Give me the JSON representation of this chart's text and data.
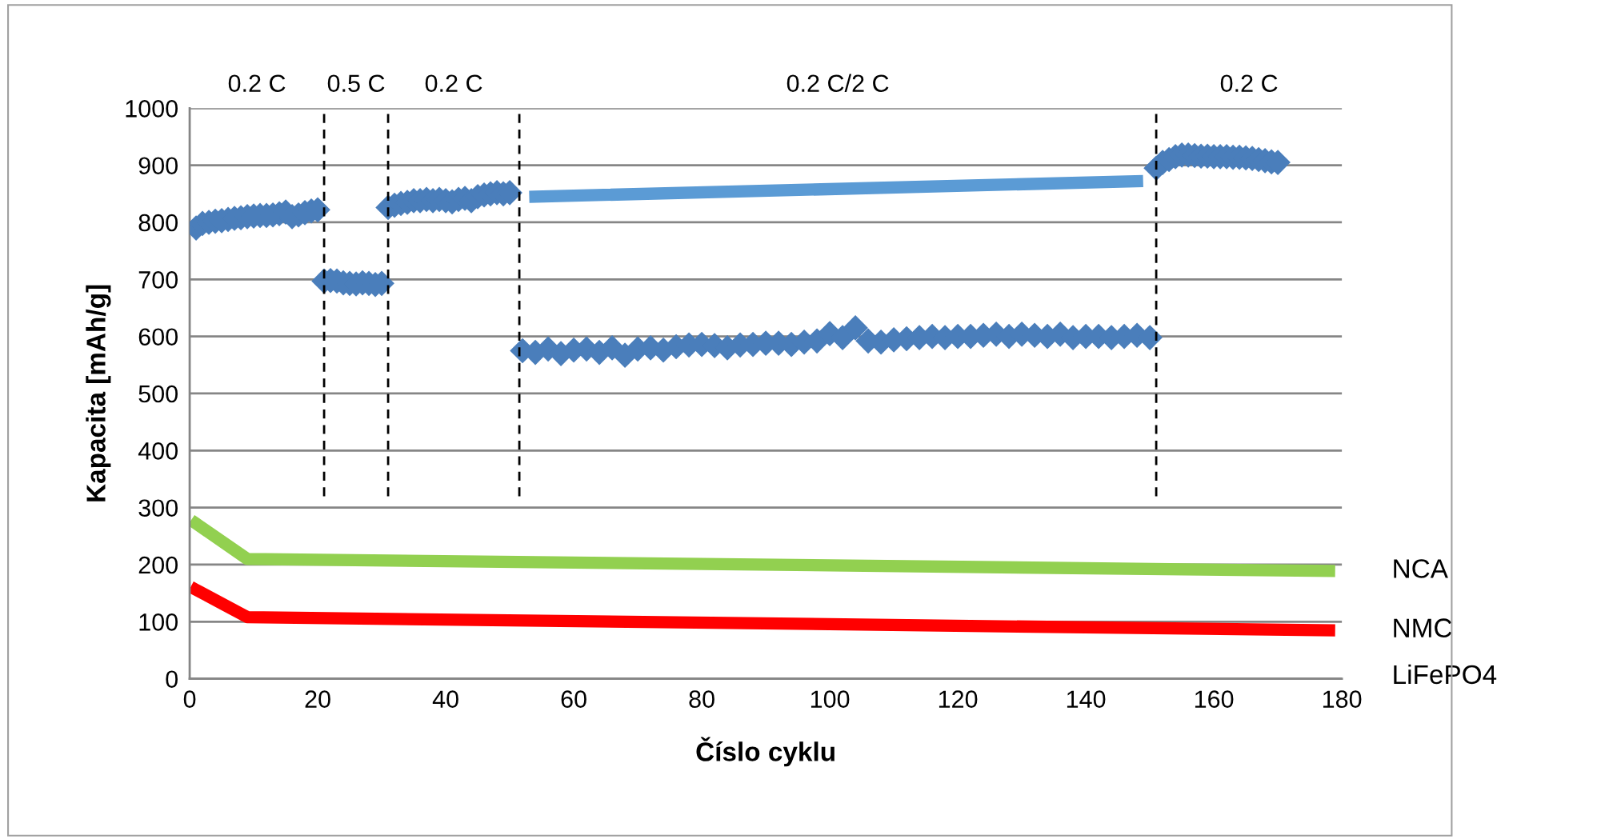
{
  "chart_data": {
    "type": "scatter",
    "xlabel": "Číslo cyklu",
    "ylabel": "Kapacita [mAh/g]",
    "xlim": [
      0,
      180
    ],
    "xticks": [
      0,
      20,
      40,
      60,
      80,
      100,
      120,
      140,
      160,
      180
    ],
    "ylim": [
      0,
      1000
    ],
    "yticks": [
      0,
      100,
      200,
      300,
      400,
      500,
      600,
      700,
      800,
      900,
      1000
    ],
    "grid": "y",
    "legend": false,
    "series": [
      {
        "color": "#4a7ebb",
        "marker": "diamond",
        "x": [
          1,
          2,
          3,
          4,
          5,
          6,
          7,
          8,
          9,
          10,
          11,
          12,
          13,
          14,
          15,
          16,
          17,
          18,
          19,
          20,
          21,
          22,
          23,
          24,
          25,
          26,
          27,
          28,
          29,
          30,
          31,
          32,
          33,
          34,
          35,
          36,
          37,
          38,
          39,
          40,
          41,
          42,
          43,
          44,
          45,
          46,
          47,
          48,
          49,
          50,
          52,
          54,
          56,
          58,
          60,
          62,
          64,
          66,
          68,
          70,
          72,
          74,
          76,
          78,
          80,
          82,
          84,
          86,
          88,
          90,
          92,
          94,
          96,
          98,
          100,
          102,
          104,
          106,
          108,
          110,
          112,
          114,
          116,
          118,
          120,
          122,
          124,
          126,
          128,
          130,
          132,
          134,
          136,
          138,
          140,
          142,
          144,
          146,
          148,
          150,
          151,
          152,
          153,
          154,
          155,
          156,
          157,
          158,
          159,
          160,
          161,
          162,
          163,
          164,
          165,
          166,
          167,
          168,
          169,
          170
        ],
        "values": [
          790,
          798,
          800,
          802,
          803,
          805,
          807,
          808,
          810,
          811,
          812,
          812,
          813,
          815,
          818,
          810,
          813,
          817,
          820,
          822,
          697,
          698,
          697,
          694,
          693,
          692,
          694,
          693,
          691,
          693,
          826,
          830,
          833,
          835,
          838,
          838,
          840,
          838,
          840,
          838,
          836,
          840,
          842,
          838,
          845,
          848,
          850,
          852,
          850,
          852,
          575,
          572,
          578,
          570,
          576,
          578,
          572,
          580,
          567,
          578,
          580,
          576,
          582,
          585,
          586,
          584,
          580,
          585,
          586,
          588,
          588,
          586,
          590,
          592,
          605,
          598,
          615,
          592,
          590,
          594,
          596,
          598,
          600,
          598,
          600,
          600,
          602,
          604,
          600,
          604,
          602,
          600,
          604,
          598,
          600,
          600,
          598,
          600,
          602,
          598,
          895,
          905,
          910,
          915,
          918,
          918,
          917,
          916,
          916,
          915,
          915,
          915,
          914,
          914,
          913,
          912,
          910,
          908,
          906,
          905
        ]
      },
      {
        "type": "line",
        "color": "#5b9bd5",
        "x": [
          54,
          148
        ],
        "values": [
          845,
          872
        ]
      },
      {
        "type": "line",
        "name": "NCA",
        "color": "#92d050",
        "x": [
          1,
          9,
          178
        ],
        "values": [
          272,
          210,
          189
        ]
      },
      {
        "type": "line",
        "name": "NMC",
        "color": "#ff0000",
        "x": [
          1,
          9,
          178
        ],
        "values": [
          156,
          108,
          85
        ]
      }
    ],
    "ref_lines": [
      {
        "axis": "x",
        "value": 21,
        "line_style": "dashed",
        "color": "#000000"
      },
      {
        "axis": "x",
        "value": 31,
        "line_style": "dashed",
        "color": "#000000"
      },
      {
        "axis": "x",
        "value": 51.5,
        "line_style": "dashed",
        "color": "#000000"
      },
      {
        "axis": "x",
        "value": 151,
        "line_style": "dashed",
        "color": "#000000"
      }
    ],
    "annotations": [
      "0.2 C",
      "0.5 C",
      "0.2 C",
      "0.2 C/2 C",
      "0.2 C",
      "LiFePO4"
    ]
  }
}
